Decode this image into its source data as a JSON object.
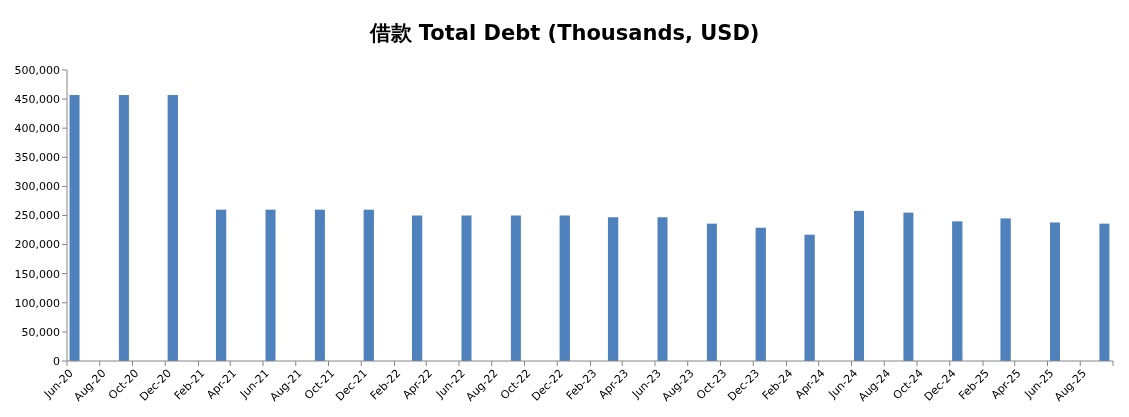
{
  "chart_data": {
    "type": "bar",
    "title": "借款 Total Debt (Thousands, USD)",
    "x": [
      "2020-06-15",
      "2020-09-15",
      "2020-12-15",
      "2021-03-15",
      "2021-06-15",
      "2021-09-15",
      "2021-12-15",
      "2022-03-15",
      "2022-06-15",
      "2022-09-15",
      "2022-12-15",
      "2023-03-15",
      "2023-06-15",
      "2023-09-15",
      "2023-12-15",
      "2024-03-15",
      "2024-06-15",
      "2024-09-15",
      "2024-12-15",
      "2025-03-15",
      "2025-06-15",
      "2025-09-15"
    ],
    "values": [
      457000,
      457000,
      457000,
      260000,
      260000,
      260000,
      260000,
      250000,
      250000,
      250000,
      250000,
      247000,
      247000,
      236000,
      229000,
      217000,
      258000,
      255000,
      240000,
      245000,
      238000,
      236000
    ],
    "color": "#4f81bd",
    "ylim": [
      0,
      500000
    ],
    "yticks": [
      {
        "value": 0,
        "label": "0"
      },
      {
        "value": 50000,
        "label": "50,000"
      },
      {
        "value": 100000,
        "label": "100,000"
      },
      {
        "value": 150000,
        "label": "150,000"
      },
      {
        "value": 200000,
        "label": "200,000"
      },
      {
        "value": 250000,
        "label": "250,000"
      },
      {
        "value": 300000,
        "label": "300,000"
      },
      {
        "value": 350000,
        "label": "350,000"
      },
      {
        "value": 400000,
        "label": "400,000"
      },
      {
        "value": 450000,
        "label": "450,000"
      },
      {
        "value": 500000,
        "label": "500,000"
      }
    ],
    "xlim": [
      "2020-06",
      "2025-10"
    ],
    "xticks": [
      {
        "value": "2020-06",
        "label": "Jun-20"
      },
      {
        "value": "2020-08",
        "label": "Aug-20"
      },
      {
        "value": "2020-10",
        "label": "Oct-20"
      },
      {
        "value": "2020-12",
        "label": "Dec-20"
      },
      {
        "value": "2021-02",
        "label": "Feb-21"
      },
      {
        "value": "2021-04",
        "label": "Apr-21"
      },
      {
        "value": "2021-06",
        "label": "Jun-21"
      },
      {
        "value": "2021-08",
        "label": "Aug-21"
      },
      {
        "value": "2021-10",
        "label": "Oct-21"
      },
      {
        "value": "2021-12",
        "label": "Dec-21"
      },
      {
        "value": "2022-02",
        "label": "Feb-22"
      },
      {
        "value": "2022-04",
        "label": "Apr-22"
      },
      {
        "value": "2022-06",
        "label": "Jun-22"
      },
      {
        "value": "2022-08",
        "label": "Aug-22"
      },
      {
        "value": "2022-10",
        "label": "Oct-22"
      },
      {
        "value": "2022-12",
        "label": "Dec-22"
      },
      {
        "value": "2023-02",
        "label": "Feb-23"
      },
      {
        "value": "2023-04",
        "label": "Apr-23"
      },
      {
        "value": "2023-06",
        "label": "Jun-23"
      },
      {
        "value": "2023-08",
        "label": "Aug-23"
      },
      {
        "value": "2023-10",
        "label": "Oct-23"
      },
      {
        "value": "2023-12",
        "label": "Dec-23"
      },
      {
        "value": "2024-02",
        "label": "Feb-24"
      },
      {
        "value": "2024-04",
        "label": "Apr-24"
      },
      {
        "value": "2024-06",
        "label": "Jun-24"
      },
      {
        "value": "2024-08",
        "label": "Aug-24"
      },
      {
        "value": "2024-10",
        "label": "Oct-24"
      },
      {
        "value": "2024-12",
        "label": "Dec-24"
      },
      {
        "value": "2025-02",
        "label": "Feb-25"
      },
      {
        "value": "2025-04",
        "label": "Apr-25"
      },
      {
        "value": "2025-06",
        "label": "Jun-25"
      },
      {
        "value": "2025-08",
        "label": "Aug-25"
      },
      {
        "value": "2025-10",
        "label": null
      }
    ],
    "grid": false
  }
}
